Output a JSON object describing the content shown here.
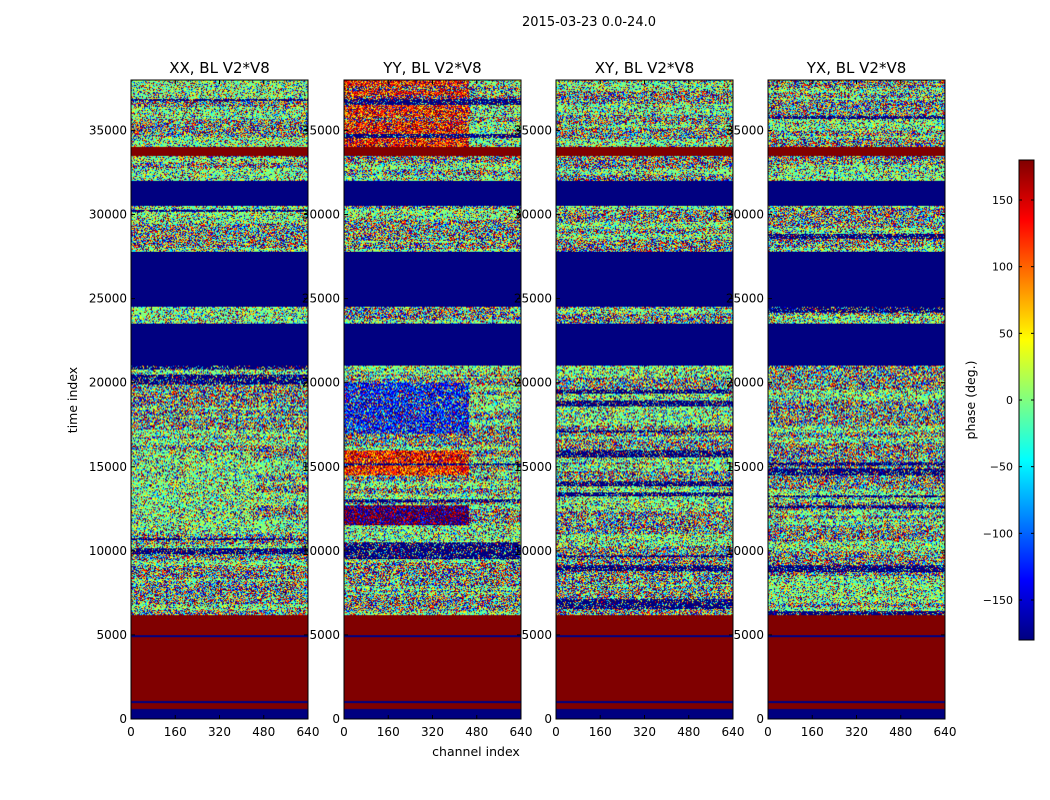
{
  "suptitle": "2015-03-23 0.0-24.0",
  "colors": {
    "jet": [
      "#000080",
      "#0000ff",
      "#0080ff",
      "#00ffff",
      "#80ff80",
      "#ffff00",
      "#ff8000",
      "#ff0000",
      "#800000"
    ],
    "frame": "#000000"
  },
  "chart_data": [
    {
      "type": "heatmap",
      "title": "XX, BL V2*V8",
      "xlabel": "",
      "ylabel": "time index",
      "xlim": [
        0,
        640
      ],
      "ylim": [
        0,
        38000
      ],
      "xticks": [
        "0",
        "160",
        "320",
        "480",
        "640"
      ],
      "yticks": [
        "0",
        "5000",
        "10000",
        "15000",
        "20000",
        "25000",
        "30000",
        "35000"
      ],
      "z_units": "phase (deg.)",
      "bands": [
        {
          "from": 0,
          "to": 600,
          "value": -180
        },
        {
          "from": 600,
          "to": 6200,
          "value": 180
        },
        {
          "from": 6200,
          "to": 17000,
          "value": "noisy (green-dominant, alternating stripes)"
        },
        {
          "from": 17000,
          "to": 21000,
          "value": "noisy"
        },
        {
          "from": 21000,
          "to": 23500,
          "value": -180
        },
        {
          "from": 23500,
          "to": 24500,
          "value": "noisy"
        },
        {
          "from": 24500,
          "to": 27800,
          "value": -180
        },
        {
          "from": 27800,
          "to": 30500,
          "value": "noisy"
        },
        {
          "from": 30500,
          "to": 32000,
          "value": -180
        },
        {
          "from": 32000,
          "to": 33500,
          "value": "noisy"
        },
        {
          "from": 33500,
          "to": 34000,
          "value": 180
        },
        {
          "from": 34000,
          "to": 38000,
          "value": "noisy"
        }
      ]
    },
    {
      "type": "heatmap",
      "title": "YY, BL V2*V8",
      "xlabel": "channel index",
      "ylabel": "",
      "xlim": [
        0,
        640
      ],
      "ylim": [
        0,
        38000
      ],
      "xticks": [
        "0",
        "160",
        "320",
        "480",
        "640"
      ],
      "yticks": [
        "0",
        "5000",
        "10000",
        "15000",
        "20000",
        "25000",
        "30000",
        "35000"
      ],
      "z_units": "phase (deg.)",
      "bands": [
        {
          "from": 0,
          "to": 600,
          "value": -180
        },
        {
          "from": 600,
          "to": 6200,
          "value": 180
        },
        {
          "from": 11500,
          "to": 12500,
          "value": "red/blue stripes"
        },
        {
          "from": 14500,
          "to": 16000,
          "value": "orange/red stripes"
        },
        {
          "from": 17000,
          "to": 20000,
          "value": "blue-dominant"
        },
        {
          "from": 21000,
          "to": 23500,
          "value": -180
        },
        {
          "from": 24500,
          "to": 27800,
          "value": -180
        },
        {
          "from": 30500,
          "to": 32000,
          "value": -180
        },
        {
          "from": 33500,
          "to": 34000,
          "value": 180
        },
        {
          "from": 34000,
          "to": 38000,
          "value": "orange/red stripes"
        }
      ]
    },
    {
      "type": "heatmap",
      "title": "XY, BL V2*V8",
      "xlabel": "",
      "ylabel": "",
      "xlim": [
        0,
        640
      ],
      "ylim": [
        0,
        38000
      ],
      "xticks": [
        "0",
        "160",
        "320",
        "480",
        "640"
      ],
      "yticks": [
        "0",
        "5000",
        "10000",
        "15000",
        "20000",
        "25000",
        "30000",
        "35000"
      ],
      "z_units": "phase (deg.)",
      "bands": [
        {
          "from": 0,
          "to": 600,
          "value": -180
        },
        {
          "from": 600,
          "to": 6200,
          "value": 180
        },
        {
          "from": 6200,
          "to": 21000,
          "value": "noisy"
        },
        {
          "from": 21000,
          "to": 23500,
          "value": -180
        },
        {
          "from": 24500,
          "to": 27800,
          "value": -180
        },
        {
          "from": 30500,
          "to": 32000,
          "value": -180
        },
        {
          "from": 33500,
          "to": 34000,
          "value": 180
        },
        {
          "from": 34000,
          "to": 38000,
          "value": "noisy"
        }
      ]
    },
    {
      "type": "heatmap",
      "title": "YX, BL V2*V8",
      "xlabel": "",
      "ylabel": "",
      "xlim": [
        0,
        640
      ],
      "ylim": [
        0,
        38000
      ],
      "xticks": [
        "0",
        "160",
        "320",
        "480",
        "640"
      ],
      "yticks": [
        "0",
        "5000",
        "10000",
        "15000",
        "20000",
        "25000",
        "30000",
        "35000"
      ],
      "z_units": "phase (deg.)",
      "bands": [
        {
          "from": 0,
          "to": 600,
          "value": -180
        },
        {
          "from": 600,
          "to": 6200,
          "value": 180
        },
        {
          "from": 6200,
          "to": 21000,
          "value": "noisy"
        },
        {
          "from": 21000,
          "to": 23500,
          "value": -180
        },
        {
          "from": 24500,
          "to": 27800,
          "value": -180
        },
        {
          "from": 30500,
          "to": 32000,
          "value": -180
        },
        {
          "from": 33500,
          "to": 34000,
          "value": 180
        },
        {
          "from": 34000,
          "to": 38000,
          "value": "noisy"
        }
      ]
    }
  ],
  "colorbar": {
    "label": "phase (deg.)",
    "range": [
      -180,
      180
    ],
    "ticks": [
      "150",
      "100",
      "50",
      "0",
      "−50",
      "−100",
      "−150"
    ],
    "tick_values": [
      150,
      100,
      50,
      0,
      -50,
      -100,
      -150
    ]
  }
}
